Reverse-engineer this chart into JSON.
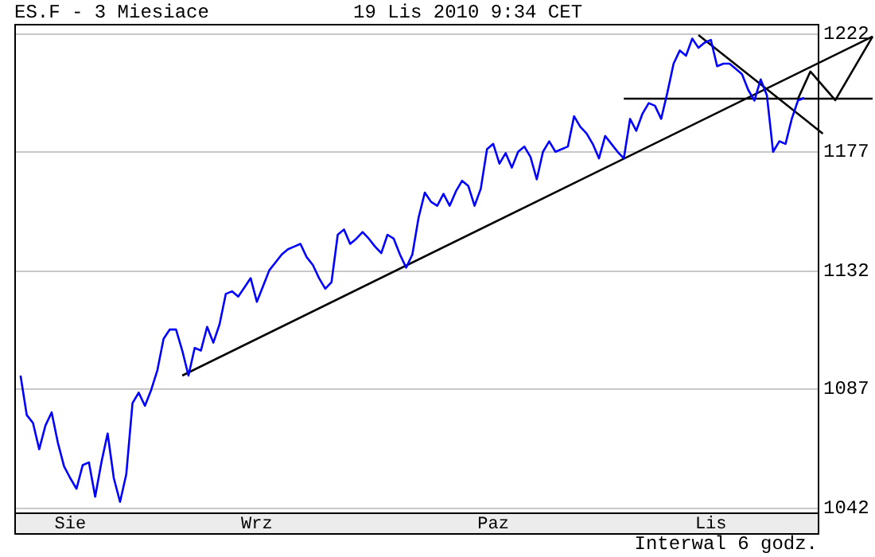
{
  "chart_data": {
    "type": "line",
    "title": "ES.F - 3 Miesiace",
    "subtitle": "19 Lis 2010 9:34 CET",
    "annotations": [
      "Interwal 6 godz."
    ],
    "categories": [
      null,
      null,
      null,
      null,
      null,
      null,
      null,
      null,
      null,
      "Sie",
      null,
      null,
      null,
      null,
      null,
      null,
      null,
      null,
      null,
      null,
      null,
      null,
      null,
      null,
      null,
      null,
      null,
      null,
      null,
      null,
      null,
      null,
      null,
      null,
      null,
      null,
      null,
      null,
      null,
      "Wrz",
      null,
      null,
      null,
      null,
      null,
      null,
      null,
      null,
      null,
      null,
      null,
      null,
      null,
      null,
      null,
      null,
      null,
      null,
      null,
      null,
      null,
      null,
      null,
      null,
      null,
      null,
      null,
      null,
      null,
      null,
      null,
      null,
      null,
      null,
      null,
      null,
      null,
      "Paz",
      null,
      null,
      null,
      null,
      null,
      null,
      null,
      null,
      null,
      null,
      null,
      null,
      null,
      null,
      null,
      null,
      null,
      null,
      null,
      null,
      null,
      null,
      null,
      null,
      null,
      null,
      null,
      null,
      null,
      null,
      null,
      null,
      null,
      null,
      "Lis",
      null,
      null,
      null,
      null,
      null,
      null,
      null,
      null,
      null,
      null,
      null,
      null,
      null,
      null,
      null,
      null,
      null,
      null,
      null,
      null,
      null,
      null,
      null,
      null,
      null,
      null
    ],
    "ylim": [
      1040,
      1225.6
    ],
    "yticks": [
      1042,
      1087,
      1132,
      1177,
      1222
    ],
    "grid": "y",
    "legend": false,
    "marker": "none",
    "line_style": "solid",
    "series": [
      {
        "color": "#0000ff",
        "values": [
          null,
          1092,
          1077,
          1074,
          1064,
          1073,
          1078,
          1066.5,
          1057.5,
          1053,
          1049,
          1058,
          1059,
          1046,
          1059,
          1070,
          1053,
          1044,
          1054.5,
          1081.5,
          1085.5,
          1080.5,
          1086.5,
          1094,
          1106,
          1109.5,
          1109.5,
          1101.5,
          1092,
          1102.5,
          1101.5,
          1110.5,
          1104.5,
          1111.5,
          1123,
          1124,
          1122,
          1125.5,
          1129,
          1120,
          1126,
          1132,
          1135,
          1138,
          1140,
          1141,
          1142,
          1137,
          1134,
          1129,
          1125,
          1127.5,
          1145.5,
          1147.5,
          1142,
          1144,
          1146.5,
          1144,
          1141,
          1138.5,
          1145.5,
          1144,
          1138,
          1133,
          1138,
          1152,
          1161.5,
          1158,
          1156.5,
          1161,
          1156.5,
          1162,
          1166,
          1164,
          1156.5,
          1163,
          1178,
          1180,
          1172.5,
          1176.5,
          1171,
          1177,
          1179,
          1175,
          1166.5,
          1177,
          1181,
          1177,
          1178,
          1179,
          1190.5,
          1186.5,
          1184,
          1180,
          1174.5,
          1183,
          1180,
          1177,
          1174.5,
          1189.5,
          1185,
          1191.5,
          1195.5,
          1194.5,
          1189.5,
          1199.5,
          1210.5,
          1215.5,
          1213.5,
          1220,
          1216.5,
          1218.5,
          1219.5,
          1209.5,
          1210.5,
          1210.5,
          1208.5,
          1206.5,
          1200.5,
          1196.5,
          1204.5,
          1198.5,
          1177,
          1181,
          1180,
          1189.5,
          1196.5,
          1197.5,
          null,
          null,
          null,
          null,
          null,
          null,
          null,
          null,
          null,
          null,
          null
        ]
      },
      {
        "type": "line",
        "color": "#000000",
        "values": [
          null,
          null,
          null,
          null,
          null,
          null,
          null,
          null,
          null,
          null,
          null,
          null,
          null,
          null,
          null,
          null,
          null,
          null,
          null,
          null,
          null,
          null,
          null,
          null,
          null,
          null,
          null,
          1092,
          null,
          null,
          null,
          null,
          null,
          null,
          null,
          null,
          null,
          null,
          null,
          null,
          null,
          null,
          null,
          null,
          null,
          null,
          null,
          null,
          null,
          null,
          null,
          null,
          null,
          null,
          null,
          null,
          null,
          null,
          null,
          null,
          null,
          null,
          null,
          null,
          null,
          null,
          null,
          null,
          null,
          null,
          null,
          null,
          null,
          null,
          null,
          null,
          null,
          null,
          null,
          null,
          null,
          null,
          null,
          null,
          null,
          null,
          null,
          null,
          null,
          null,
          null,
          null,
          null,
          null,
          null,
          null,
          null,
          null,
          null,
          null,
          null,
          null,
          null,
          null,
          null,
          null,
          null,
          null,
          null,
          null,
          null,
          null,
          null,
          null,
          null,
          null,
          null,
          null,
          null,
          null,
          null,
          null,
          null,
          null,
          null,
          null,
          null,
          null,
          null,
          null,
          null,
          null,
          null,
          null,
          null,
          null,
          null,
          null,
          1220.8
        ]
      },
      {
        "type": "line",
        "color": "#000000",
        "values": [
          null,
          null,
          null,
          null,
          null,
          null,
          null,
          null,
          null,
          null,
          null,
          null,
          null,
          null,
          null,
          null,
          null,
          null,
          null,
          null,
          null,
          null,
          null,
          null,
          null,
          null,
          null,
          null,
          null,
          null,
          null,
          null,
          null,
          null,
          null,
          null,
          null,
          null,
          null,
          null,
          null,
          null,
          null,
          null,
          null,
          null,
          null,
          null,
          null,
          null,
          null,
          null,
          null,
          null,
          null,
          null,
          null,
          null,
          null,
          null,
          null,
          null,
          null,
          null,
          null,
          null,
          null,
          null,
          null,
          null,
          null,
          null,
          null,
          null,
          null,
          null,
          null,
          null,
          null,
          null,
          null,
          null,
          null,
          null,
          null,
          null,
          null,
          null,
          null,
          null,
          null,
          null,
          null,
          null,
          null,
          null,
          null,
          null,
          null,
          null,
          null,
          null,
          null,
          null,
          null,
          null,
          null,
          null,
          null,
          null,
          1221.4,
          null,
          null,
          null,
          null,
          null,
          null,
          null,
          null,
          null,
          null,
          null,
          null,
          null,
          null,
          null,
          null,
          null,
          null,
          null,
          1183.9,
          null,
          null,
          null,
          null,
          null,
          null,
          null,
          null
        ]
      },
      {
        "type": "line",
        "color": "#000000",
        "values": [
          null,
          null,
          null,
          null,
          null,
          null,
          null,
          null,
          null,
          null,
          null,
          null,
          null,
          null,
          null,
          null,
          null,
          null,
          null,
          null,
          null,
          null,
          null,
          null,
          null,
          null,
          null,
          null,
          null,
          null,
          null,
          null,
          null,
          null,
          null,
          null,
          null,
          null,
          null,
          null,
          null,
          null,
          null,
          null,
          null,
          null,
          null,
          null,
          null,
          null,
          null,
          null,
          null,
          null,
          null,
          null,
          null,
          null,
          null,
          null,
          null,
          null,
          null,
          null,
          null,
          null,
          null,
          null,
          null,
          null,
          null,
          null,
          null,
          null,
          null,
          null,
          null,
          null,
          null,
          null,
          null,
          null,
          null,
          null,
          null,
          null,
          null,
          null,
          null,
          null,
          null,
          null,
          null,
          null,
          null,
          null,
          null,
          null,
          1197.2,
          null,
          null,
          null,
          null,
          null,
          null,
          null,
          null,
          null,
          null,
          null,
          null,
          null,
          null,
          null,
          null,
          null,
          null,
          null,
          null,
          null,
          null,
          null,
          null,
          null,
          null,
          null,
          null,
          null,
          null,
          null,
          null,
          null,
          null,
          null,
          null,
          null,
          null,
          null,
          1197.2
        ]
      },
      {
        "type": "line",
        "color": "#000000",
        "values": [
          null,
          null,
          null,
          null,
          null,
          null,
          null,
          null,
          null,
          null,
          null,
          null,
          null,
          null,
          null,
          null,
          null,
          null,
          null,
          null,
          null,
          null,
          null,
          null,
          null,
          null,
          null,
          null,
          null,
          null,
          null,
          null,
          null,
          null,
          null,
          null,
          null,
          null,
          null,
          null,
          null,
          null,
          null,
          null,
          null,
          null,
          null,
          null,
          null,
          null,
          null,
          null,
          null,
          null,
          null,
          null,
          null,
          null,
          null,
          null,
          null,
          null,
          null,
          null,
          null,
          null,
          null,
          null,
          null,
          null,
          null,
          null,
          null,
          null,
          null,
          null,
          null,
          null,
          null,
          null,
          null,
          null,
          null,
          null,
          null,
          null,
          null,
          null,
          null,
          null,
          null,
          null,
          null,
          null,
          null,
          null,
          null,
          null,
          null,
          null,
          null,
          null,
          null,
          null,
          null,
          null,
          null,
          null,
          null,
          null,
          null,
          null,
          null,
          null,
          null,
          null,
          null,
          null,
          null,
          null,
          null,
          null,
          null,
          null,
          null,
          null,
          1197.2,
          null,
          1207.5,
          null,
          null,
          null,
          1196.6,
          null,
          null,
          null,
          null,
          null,
          1220.8
        ]
      }
    ]
  }
}
